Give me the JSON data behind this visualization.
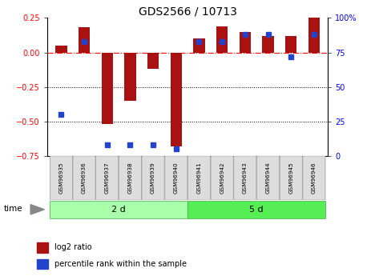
{
  "title": "GDS2566 / 10713",
  "samples": [
    "GSM96935",
    "GSM96936",
    "GSM96937",
    "GSM96938",
    "GSM96939",
    "GSM96940",
    "GSM96941",
    "GSM96942",
    "GSM96943",
    "GSM96944",
    "GSM96945",
    "GSM96946"
  ],
  "log2_ratio": [
    0.05,
    0.18,
    -0.52,
    -0.35,
    -0.12,
    -0.68,
    0.1,
    0.19,
    0.15,
    0.12,
    0.12,
    0.25
  ],
  "percentile_rank": [
    30,
    83,
    8,
    8,
    8,
    5,
    83,
    83,
    88,
    88,
    72,
    88
  ],
  "groups": [
    {
      "label": "2 d",
      "start": 0,
      "end": 6,
      "color": "#AAFFAA"
    },
    {
      "label": "5 d",
      "start": 6,
      "end": 12,
      "color": "#55EE55"
    }
  ],
  "ylim_left": [
    -0.75,
    0.25
  ],
  "ylim_right": [
    0,
    100
  ],
  "yticks_left": [
    0.25,
    0,
    -0.25,
    -0.5,
    -0.75
  ],
  "yticks_right": [
    100,
    75,
    50,
    25,
    0
  ],
  "bar_color_red": "#AA1111",
  "bar_color_blue": "#2244CC",
  "bar_width": 0.5,
  "bg_color": "#FFFFFF",
  "time_label": "time",
  "legend_red": "log2 ratio",
  "legend_blue": "percentile rank within the sample",
  "title_fontsize": 10,
  "tick_fontsize": 7,
  "group_label_fontsize": 8
}
